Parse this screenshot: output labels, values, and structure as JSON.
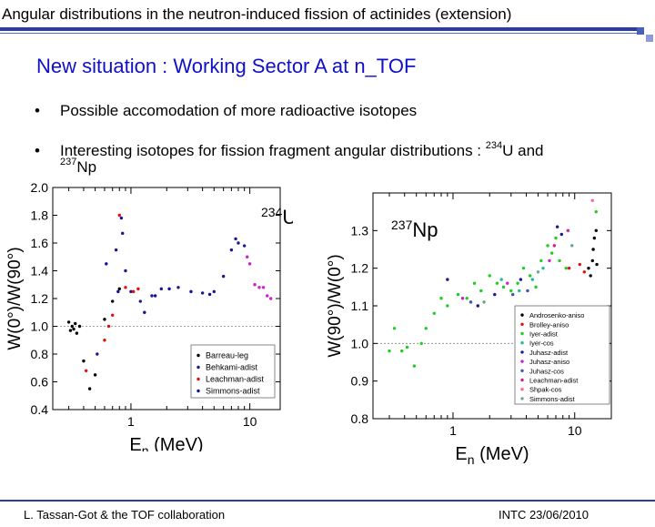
{
  "header": {
    "title": "Angular distributions in the neutron-induced fission of actinides (extension)",
    "rule_color": "#2b3f9a"
  },
  "subtitle": "New situation : Working Sector A at n_TOF",
  "bullets": [
    {
      "marker": "•",
      "text": "Possible accomodation of more radioactive isotopes"
    },
    {
      "marker": "•",
      "text_before": "Interesting isotopes for fission fragment angular distributions : ",
      "sup1": "234",
      "mid": "U and",
      "sup2": "237",
      "after": "Np"
    }
  ],
  "footer": {
    "left": "L. Tassan-Got & the TOF collaboration",
    "right": "INTC 23/06/2010"
  },
  "chart_data": [
    {
      "type": "scatter",
      "label_sup": "234",
      "label_main": "U",
      "xlabel_main": "E",
      "xlabel_sub": "n",
      "xlabel_unit": " (MeV)",
      "ylabel": "W(0°)/W(90°)",
      "xscale": "log",
      "xlim": [
        0.22,
        18
      ],
      "ylim": [
        0.4,
        2.0
      ],
      "xtick_labels": [
        "1",
        "10"
      ],
      "xticks": [
        1,
        10
      ],
      "ytick_labels": [
        "0.4",
        "0.6",
        "0.8",
        "1.0",
        "1.2",
        "1.4",
        "1.6",
        "1.8",
        "2.0"
      ],
      "yticks": [
        0.4,
        0.6,
        0.8,
        1.0,
        1.2,
        1.4,
        1.6,
        1.8,
        2.0
      ],
      "reference_line": 1.0,
      "legend_position": "bottom-right",
      "series": [
        {
          "name": "Barreau-leg",
          "color": "#000000",
          "points": [
            [
              0.3,
              1.03
            ],
            [
              0.31,
              0.97
            ],
            [
              0.32,
              1.0
            ],
            [
              0.33,
              0.98
            ],
            [
              0.34,
              1.02
            ],
            [
              0.35,
              0.95
            ],
            [
              0.37,
              1.0
            ],
            [
              0.4,
              0.75
            ],
            [
              0.45,
              0.55
            ],
            [
              0.5,
              0.65
            ],
            [
              0.6,
              1.05
            ],
            [
              0.7,
              1.18
            ],
            [
              0.8,
              1.27
            ]
          ]
        },
        {
          "name": "Behkami-adist",
          "color": "#1a1a8c",
          "points": [
            [
              0.52,
              0.8
            ],
            [
              0.75,
              1.55
            ],
            [
              0.85,
              1.67
            ],
            [
              0.9,
              1.4
            ],
            [
              1.0,
              1.25
            ],
            [
              1.2,
              1.18
            ],
            [
              1.5,
              1.22
            ],
            [
              1.8,
              1.27
            ],
            [
              2.5,
              1.28
            ],
            [
              4,
              1.24
            ],
            [
              5,
              1.25
            ],
            [
              6,
              1.36
            ],
            [
              7,
              1.55
            ],
            [
              7.6,
              1.63
            ],
            [
              8,
              1.6
            ],
            [
              9,
              1.58
            ]
          ]
        },
        {
          "name": "Leachman-adist",
          "color": "#e01010",
          "points": [
            [
              0.42,
              0.68
            ],
            [
              0.6,
              0.9
            ],
            [
              0.65,
              1.0
            ],
            [
              0.7,
              1.08
            ],
            [
              0.8,
              1.8
            ],
            [
              0.9,
              1.28
            ],
            [
              1.05,
              1.25
            ],
            [
              1.15,
              1.27
            ]
          ]
        },
        {
          "name": "Simmons-adist",
          "color": "#1010a0",
          "points": [
            [
              0.62,
              1.45
            ],
            [
              0.78,
              1.25
            ],
            [
              0.83,
              1.78
            ],
            [
              1.3,
              1.1
            ],
            [
              1.6,
              1.22
            ],
            [
              2.1,
              1.27
            ],
            [
              3.2,
              1.25
            ],
            [
              4.6,
              1.23
            ]
          ]
        },
        {
          "name": "",
          "color": "#cc22cc",
          "points": [
            [
              9.5,
              1.5
            ],
            [
              10,
              1.45
            ],
            [
              11,
              1.3
            ],
            [
              12,
              1.28
            ],
            [
              13,
              1.28
            ],
            [
              14,
              1.22
            ],
            [
              15,
              1.2
            ]
          ]
        }
      ]
    },
    {
      "type": "scatter",
      "label_sup": "237",
      "label_main": "Np",
      "xlabel_main": "E",
      "xlabel_sub": "n",
      "xlabel_unit": " (MeV)",
      "ylabel": "W(90°)/W(0°)",
      "xscale": "log",
      "xlim": [
        0.22,
        20
      ],
      "ylim": [
        0.8,
        1.4
      ],
      "xtick_labels": [
        "1",
        "10"
      ],
      "xticks": [
        1,
        10
      ],
      "ytick_labels": [
        "0.8",
        "0.9",
        "1.0",
        "1.1",
        "1.2",
        "1.3"
      ],
      "yticks": [
        0.8,
        0.9,
        1.0,
        1.1,
        1.2,
        1.3
      ],
      "reference_line": 1.0,
      "legend_position": "bottom-right",
      "series": [
        {
          "name": "Androsenko-aniso",
          "color": "#000000",
          "points": [
            [
              13,
              1.2
            ],
            [
              13.5,
              1.18
            ],
            [
              14,
              1.22
            ],
            [
              14.2,
              1.25
            ],
            [
              14.5,
              1.28
            ],
            [
              15,
              1.3
            ],
            [
              15.2,
              1.21
            ]
          ]
        },
        {
          "name": "Brolley-aniso",
          "color": "#e01010",
          "points": [
            [
              9,
              1.2
            ],
            [
              11,
              1.21
            ],
            [
              12,
              1.19
            ]
          ]
        },
        {
          "name": "Iyer-adist",
          "color": "#22cc22",
          "points": [
            [
              0.3,
              0.98
            ],
            [
              0.33,
              1.04
            ],
            [
              0.38,
              0.98
            ],
            [
              0.42,
              0.99
            ],
            [
              0.48,
              0.94
            ],
            [
              0.55,
              1.0
            ],
            [
              0.6,
              1.04
            ],
            [
              0.7,
              1.08
            ],
            [
              0.8,
              1.12
            ],
            [
              0.9,
              1.1
            ],
            [
              1.1,
              1.13
            ],
            [
              1.3,
              1.12
            ],
            [
              1.5,
              1.16
            ],
            [
              1.7,
              1.14
            ],
            [
              2.0,
              1.18
            ],
            [
              2.3,
              1.16
            ],
            [
              2.6,
              1.15
            ],
            [
              3.0,
              1.14
            ],
            [
              3.4,
              1.16
            ],
            [
              3.8,
              1.2
            ],
            [
              4.3,
              1.18
            ],
            [
              4.8,
              1.15
            ],
            [
              5.3,
              1.22
            ],
            [
              6.0,
              1.26
            ],
            [
              6.5,
              1.24
            ],
            [
              7.0,
              1.28
            ],
            [
              7.5,
              1.22
            ],
            [
              8.5,
              1.2
            ],
            [
              15,
              1.35
            ]
          ]
        },
        {
          "name": "Iyer-cos",
          "color": "#22bb99",
          "points": [
            [
              2.5,
              1.17
            ],
            [
              3.5,
              1.14
            ],
            [
              4.5,
              1.17
            ],
            [
              5.5,
              1.2
            ]
          ]
        },
        {
          "name": "Juhasz-adist",
          "color": "#1a1a8c",
          "points": [
            [
              0.9,
              1.17
            ],
            [
              1.6,
              1.1
            ],
            [
              2.2,
              1.13
            ],
            [
              3.6,
              1.17
            ],
            [
              7.2,
              1.31
            ],
            [
              7.8,
              1.29
            ]
          ]
        },
        {
          "name": "Juhasz-aniso",
          "color": "#cc22cc",
          "points": [
            [
              1.2,
              1.12
            ],
            [
              2.8,
              1.16
            ],
            [
              6.2,
              1.22
            ]
          ]
        },
        {
          "name": "Juhasz-cos",
          "color": "#4455aa",
          "points": [
            [
              1.4,
              1.11
            ],
            [
              3.1,
              1.13
            ],
            [
              4.1,
              1.14
            ]
          ]
        },
        {
          "name": "Leachman-adist",
          "color": "#cc2288",
          "points": [
            [
              6.8,
              1.26
            ],
            [
              8.8,
              1.3
            ]
          ]
        },
        {
          "name": "Shpak-cos",
          "color": "#ff6688",
          "points": [
            [
              14,
              1.38
            ]
          ]
        },
        {
          "name": "Simmons-adist",
          "color": "#66aa88",
          "points": [
            [
              1.8,
              1.11
            ],
            [
              5.0,
              1.19
            ],
            [
              9.5,
              1.26
            ]
          ]
        }
      ]
    }
  ]
}
